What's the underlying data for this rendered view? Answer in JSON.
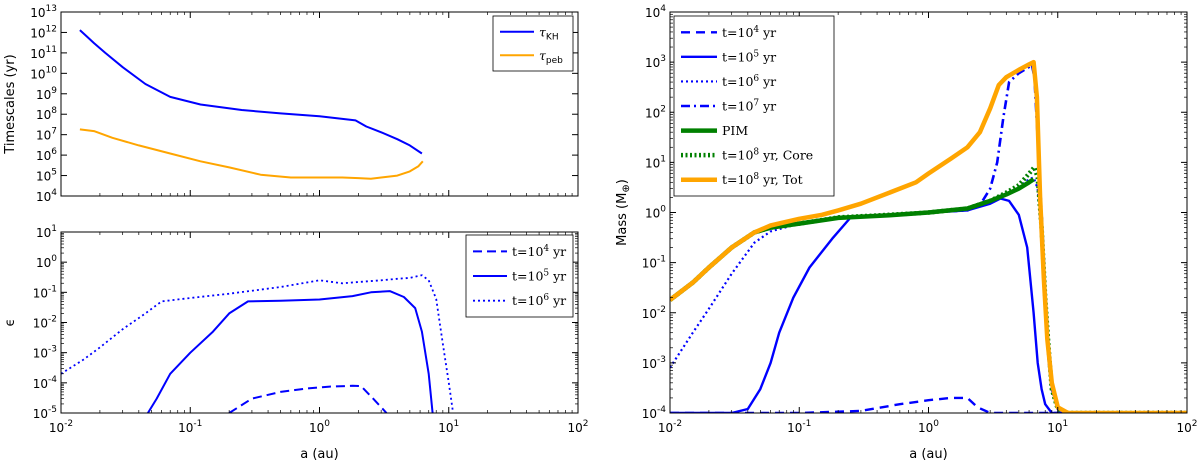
{
  "chart_data": [
    {
      "id": "tl",
      "type": "line",
      "xscale": "log",
      "yscale": "log",
      "xlim": [
        0.01,
        100
      ],
      "ylim": [
        10000,
        10000000000000.0
      ],
      "xticks": [],
      "xticklabels": [],
      "yticks": [
        10000,
        100000,
        1000000,
        10000000,
        100000000,
        1000000000,
        10000000000,
        100000000000,
        1000000000000,
        10000000000000
      ],
      "yticklabels": [
        [
          "10",
          "4"
        ],
        [
          "10",
          "5"
        ],
        [
          "10",
          "6"
        ],
        [
          "10",
          "7"
        ],
        [
          "10",
          "8"
        ],
        [
          "10",
          "9"
        ],
        [
          "10",
          "10"
        ],
        [
          "10",
          "11"
        ],
        [
          "10",
          "12"
        ],
        [
          "10",
          "13"
        ]
      ],
      "xlabel": "",
      "ylabel": "Timescales (yr)",
      "legend": {
        "position": "top-right"
      },
      "series": [
        {
          "name": "τKH",
          "label_main": "τ",
          "label_sub": "KH",
          "color": "#0000ff",
          "width": 2,
          "dash": "",
          "x": [
            0.014,
            0.016,
            0.018,
            0.022,
            0.03,
            0.045,
            0.07,
            0.12,
            0.25,
            0.5,
            1,
            1.9,
            2.3,
            3,
            4,
            5,
            6.2
          ],
          "y": [
            1300000000000.0,
            600000000000.0,
            300000000000.0,
            100000000000.0,
            20000000000.0,
            3000000000.0,
            700000000.0,
            300000000.0,
            160000000.0,
            110000000.0,
            80000000.0,
            50000000.0,
            25000000.0,
            13000000.0,
            6000000.0,
            3000000.0,
            1200000.0
          ]
        },
        {
          "name": "τpeb",
          "label_main": "τ",
          "label_sub": "peb",
          "color": "#ffa500",
          "width": 2,
          "dash": "",
          "x": [
            0.014,
            0.018,
            0.025,
            0.04,
            0.07,
            0.12,
            0.2,
            0.35,
            0.6,
            1,
            1.5,
            2,
            2.5,
            3,
            4,
            5,
            5.8,
            6.3
          ],
          "y": [
            18000000.0,
            15000000.0,
            7000000.0,
            3000000.0,
            1200000.0,
            500000.0,
            250000.0,
            110000.0,
            80000.0,
            80000.0,
            80000.0,
            75000.0,
            70000.0,
            80000.0,
            100000.0,
            160000.0,
            280000.0,
            500000.0
          ]
        }
      ]
    },
    {
      "id": "bl",
      "type": "line",
      "xscale": "log",
      "yscale": "log",
      "xlim": [
        0.01,
        100
      ],
      "ylim": [
        1e-05,
        10
      ],
      "xticks": [
        0.01,
        0.1,
        1,
        10,
        100
      ],
      "xticklabels": [
        [
          "10",
          "-2"
        ],
        [
          "10",
          "-1"
        ],
        [
          "10",
          "0"
        ],
        [
          "10",
          "1"
        ],
        [
          "10",
          "2"
        ]
      ],
      "yticks": [
        1e-05,
        0.0001,
        0.001,
        0.01,
        0.1,
        1,
        10
      ],
      "yticklabels": [
        [
          "10",
          "-5"
        ],
        [
          "10",
          "-4"
        ],
        [
          "10",
          "-3"
        ],
        [
          "10",
          "-2"
        ],
        [
          "10",
          "-1"
        ],
        [
          "10",
          "0"
        ],
        [
          "10",
          "1"
        ]
      ],
      "xlabel": "a (au)",
      "ylabel": "ϵ",
      "legend": {
        "position": "top-right"
      },
      "series": [
        {
          "name": "t=10^4 yr",
          "label_pre": "t=10",
          "label_sup": "4",
          "label_post": " yr",
          "color": "#0000ff",
          "width": 2,
          "dash": "9,5",
          "x": [
            0.2,
            0.3,
            0.5,
            0.8,
            1.2,
            1.8,
            2.1,
            2.6,
            3.3
          ],
          "y": [
            1e-05,
            3e-05,
            5e-05,
            6.5e-05,
            7.5e-05,
            8e-05,
            7.8e-05,
            3e-05,
            1e-05
          ]
        },
        {
          "name": "t=10^5 yr",
          "label_pre": "t=10",
          "label_sup": "5",
          "label_post": " yr",
          "color": "#0000ff",
          "width": 2,
          "dash": "",
          "x": [
            0.047,
            0.055,
            0.07,
            0.1,
            0.15,
            0.2,
            0.28,
            0.5,
            1,
            1.8,
            2.5,
            3.5,
            4.5,
            5.5,
            6.2,
            7,
            7.5
          ],
          "y": [
            1e-05,
            3e-05,
            0.0002,
            0.001,
            0.005,
            0.02,
            0.05,
            0.053,
            0.058,
            0.075,
            0.1,
            0.11,
            0.07,
            0.03,
            0.005,
            0.0002,
            1e-05
          ]
        },
        {
          "name": "t=10^6 yr",
          "label_pre": "t=10",
          "label_sup": "6",
          "label_post": " yr",
          "color": "#0000ff",
          "width": 1.8,
          "dash": "2,3",
          "x": [
            0.01,
            0.015,
            0.02,
            0.03,
            0.045,
            0.06,
            0.1,
            0.2,
            0.5,
            1,
            1.5,
            2,
            3,
            4,
            5,
            6.2,
            7,
            8,
            9,
            10,
            10.8
          ],
          "y": [
            0.0002,
            0.0006,
            0.0015,
            0.006,
            0.02,
            0.05,
            0.065,
            0.09,
            0.15,
            0.25,
            0.2,
            0.22,
            0.25,
            0.28,
            0.3,
            0.37,
            0.25,
            0.06,
            0.002,
            0.0001,
            1e-05
          ]
        }
      ]
    },
    {
      "id": "r",
      "type": "line",
      "xscale": "log",
      "yscale": "log",
      "xlim": [
        0.01,
        100
      ],
      "ylim": [
        0.0001,
        10000
      ],
      "xticks": [
        0.01,
        0.1,
        1,
        10,
        100
      ],
      "xticklabels": [
        [
          "10",
          "-2"
        ],
        [
          "10",
          "-1"
        ],
        [
          "10",
          "0"
        ],
        [
          "10",
          "1"
        ],
        [
          "10",
          "2"
        ]
      ],
      "yticks": [
        0.0001,
        0.001,
        0.01,
        0.1,
        1,
        10,
        100,
        1000,
        10000
      ],
      "yticklabels": [
        [
          "10",
          "-4"
        ],
        [
          "10",
          "-3"
        ],
        [
          "10",
          "-2"
        ],
        [
          "10",
          "-1"
        ],
        [
          "10",
          "0"
        ],
        [
          "10",
          "1"
        ],
        [
          "10",
          "2"
        ],
        [
          "10",
          "3"
        ],
        [
          "10",
          "4"
        ]
      ],
      "xlabel": "a (au)",
      "ylabel_main": "Mass (M",
      "ylabel_sub": "⊕",
      "ylabel_end": ")",
      "legend": {
        "position": "top-left"
      },
      "series": [
        {
          "name": "t=10^4 yr",
          "label_pre": "t=10",
          "label_sup": "4",
          "label_post": " yr",
          "color": "#0000ff",
          "width": 2.4,
          "dash": "9,6",
          "x": [
            0.01,
            0.1,
            0.3,
            0.6,
            1,
            1.5,
            2,
            2.4,
            3,
            4,
            6,
            10,
            20,
            100
          ],
          "y": [
            0.0001,
            0.0001,
            0.00011,
            0.00015,
            0.00018,
            0.0002,
            0.0002,
            0.00013,
            0.0001,
            0.0001,
            0.0001,
            0.0001,
            0.0001,
            0.0001
          ]
        },
        {
          "name": "t=10^5 yr",
          "label_pre": "t=10",
          "label_sup": "5",
          "label_post": " yr",
          "color": "#0000ff",
          "width": 2.4,
          "dash": "",
          "x": [
            0.01,
            0.03,
            0.04,
            0.05,
            0.06,
            0.07,
            0.09,
            0.12,
            0.18,
            0.25,
            0.5,
            1,
            2,
            3,
            3.6,
            4.2,
            5,
            5.8,
            6.5,
            7,
            7.5,
            8,
            9,
            10,
            20,
            100
          ],
          "y": [
            0.0001,
            0.0001,
            0.00012,
            0.0003,
            0.001,
            0.004,
            0.02,
            0.08,
            0.3,
            0.8,
            0.9,
            1,
            1.1,
            1.5,
            1.9,
            1.7,
            0.9,
            0.2,
            0.01,
            0.001,
            0.0003,
            0.00015,
            0.0001,
            0.0001,
            0.0001,
            0.0001
          ]
        },
        {
          "name": "t=10^6 yr",
          "label_pre": "t=10",
          "label_sup": "6",
          "label_post": " yr",
          "color": "#0000ff",
          "width": 2.2,
          "dash": "2,3",
          "x": [
            0.01,
            0.015,
            0.02,
            0.03,
            0.045,
            0.06,
            0.1,
            0.2,
            0.5,
            1,
            2,
            3,
            4,
            5,
            6,
            6.5,
            7,
            7.5,
            8,
            8.5,
            9,
            10,
            12,
            20,
            100
          ],
          "y": [
            0.0008,
            0.004,
            0.012,
            0.06,
            0.25,
            0.42,
            0.6,
            0.8,
            0.9,
            1,
            1.2,
            1.7,
            2.4,
            3.2,
            4.6,
            5,
            3,
            0.3,
            0.01,
            0.001,
            0.0003,
            0.00012,
            0.0001,
            0.0001,
            0.0001
          ]
        },
        {
          "name": "t=10^7 yr",
          "label_pre": "t=10",
          "label_sup": "7",
          "label_post": " yr",
          "color": "#0000ff",
          "width": 2.6,
          "dash": "9,4,2,4",
          "x": [
            0.01,
            0.015,
            0.02,
            0.03,
            0.045,
            0.06,
            0.1,
            0.2,
            0.5,
            1,
            2,
            2.5,
            3,
            3.4,
            3.8,
            4.2,
            5,
            6,
            6.3,
            6.6,
            7,
            7.5,
            8,
            8.5,
            9,
            10,
            12,
            20,
            100
          ],
          "y": [
            0.018,
            0.04,
            0.08,
            0.2,
            0.4,
            0.5,
            0.6,
            0.8,
            0.9,
            1,
            1.1,
            1.4,
            3,
            10,
            80,
            400,
            600,
            800,
            900,
            500,
            30,
            1,
            0.03,
            0.002,
            0.0003,
            0.00012,
            0.0001,
            0.0001,
            0.0001
          ]
        },
        {
          "name": "PIM",
          "label_plain": "PIM",
          "color": "#008000",
          "width": 4.5,
          "dash": "",
          "x": [
            0.01,
            0.015,
            0.02,
            0.03,
            0.045,
            0.06,
            0.1,
            0.2,
            0.5,
            1,
            2,
            3,
            4,
            5,
            6,
            6.5
          ],
          "y": [
            0.018,
            0.04,
            0.08,
            0.2,
            0.4,
            0.5,
            0.6,
            0.78,
            0.88,
            1,
            1.2,
            1.7,
            2.3,
            3,
            4,
            4.6
          ]
        },
        {
          "name": "t=10^8 yr, Core",
          "label_pre": "t=10",
          "label_sup": "8",
          "label_post": " yr, Core",
          "color": "#008000",
          "width": 4.5,
          "dash": "2,2.5",
          "x": [
            0.01,
            0.015,
            0.02,
            0.03,
            0.045,
            0.06,
            0.1,
            0.2,
            0.5,
            1,
            2,
            3,
            4,
            5,
            6,
            6.6,
            7,
            7.5,
            8,
            8.5,
            9,
            10,
            12,
            20,
            100
          ],
          "y": [
            0.018,
            0.04,
            0.08,
            0.2,
            0.4,
            0.5,
            0.6,
            0.8,
            0.9,
            1,
            1.2,
            1.7,
            2.5,
            3.5,
            6,
            8,
            5,
            0.5,
            0.02,
            0.002,
            0.0003,
            0.00012,
            0.0001,
            0.0001,
            0.0001
          ]
        },
        {
          "name": "t=10^8 yr, Tot",
          "label_pre": "t=10",
          "label_sup": "8",
          "label_post": " yr, Tot",
          "color": "#ffa500",
          "width": 4.5,
          "dash": "",
          "x": [
            0.01,
            0.015,
            0.02,
            0.03,
            0.045,
            0.06,
            0.1,
            0.15,
            0.2,
            0.3,
            0.5,
            0.8,
            1,
            1.5,
            2,
            2.5,
            3,
            3.5,
            4,
            5,
            6,
            6.5,
            6.9,
            7.3,
            7.8,
            8.3,
            9,
            10,
            12,
            20,
            100
          ],
          "y": [
            0.018,
            0.04,
            0.08,
            0.2,
            0.4,
            0.55,
            0.75,
            0.9,
            1.1,
            1.5,
            2.5,
            4,
            6,
            12,
            20,
            40,
            120,
            350,
            500,
            700,
            900,
            1000,
            200,
            2,
            0.05,
            0.003,
            0.0004,
            0.00013,
            0.0001,
            0.0001,
            0.0001
          ]
        }
      ]
    }
  ]
}
